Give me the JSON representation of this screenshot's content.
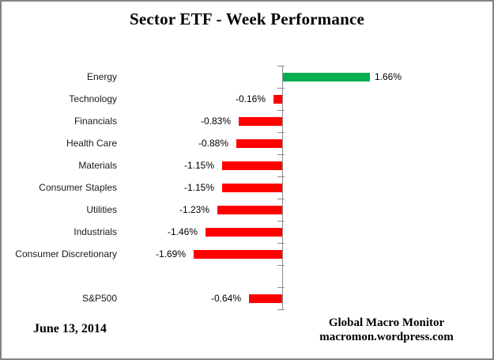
{
  "frame": {
    "title": "Sector ETF - Week Performance",
    "footer_left": "June 13, 2014",
    "footer_right_line1": "Global Macro Monitor",
    "footer_right_line2": "macromon.wordpress.com"
  },
  "colors": {
    "positive_bar": "#00AE50",
    "negative_bar": "#FF0000",
    "axis": "#8c8c8c",
    "border": "#848484",
    "text": "#000000"
  },
  "chart_data": {
    "type": "bar",
    "orientation": "horizontal",
    "title": "Sector ETF - Week Performance",
    "categories": [
      "Energy",
      "Technology",
      "Financials",
      "Health Care",
      "Materials",
      "Consumer Staples",
      "Utilities",
      "Industrials",
      "Consumer Discretionary",
      "",
      "S&P500"
    ],
    "values": [
      1.66,
      -0.16,
      -0.83,
      -0.88,
      -1.15,
      -1.15,
      -1.23,
      -1.46,
      -1.69,
      null,
      -0.64
    ],
    "data_labels": [
      "1.66%",
      "-0.16%",
      "-0.83%",
      "-0.88%",
      "-1.15%",
      "-1.15%",
      "-1.23%",
      "-1.46%",
      "-1.69%",
      "",
      "-0.64%"
    ],
    "xlabel": "",
    "ylabel": "",
    "xlim": [
      -2.2,
      2.2
    ],
    "grid": false,
    "legend": false,
    "annotations": [
      "June 13, 2014",
      "Global Macro Monitor",
      "macromon.wordpress.com"
    ]
  }
}
